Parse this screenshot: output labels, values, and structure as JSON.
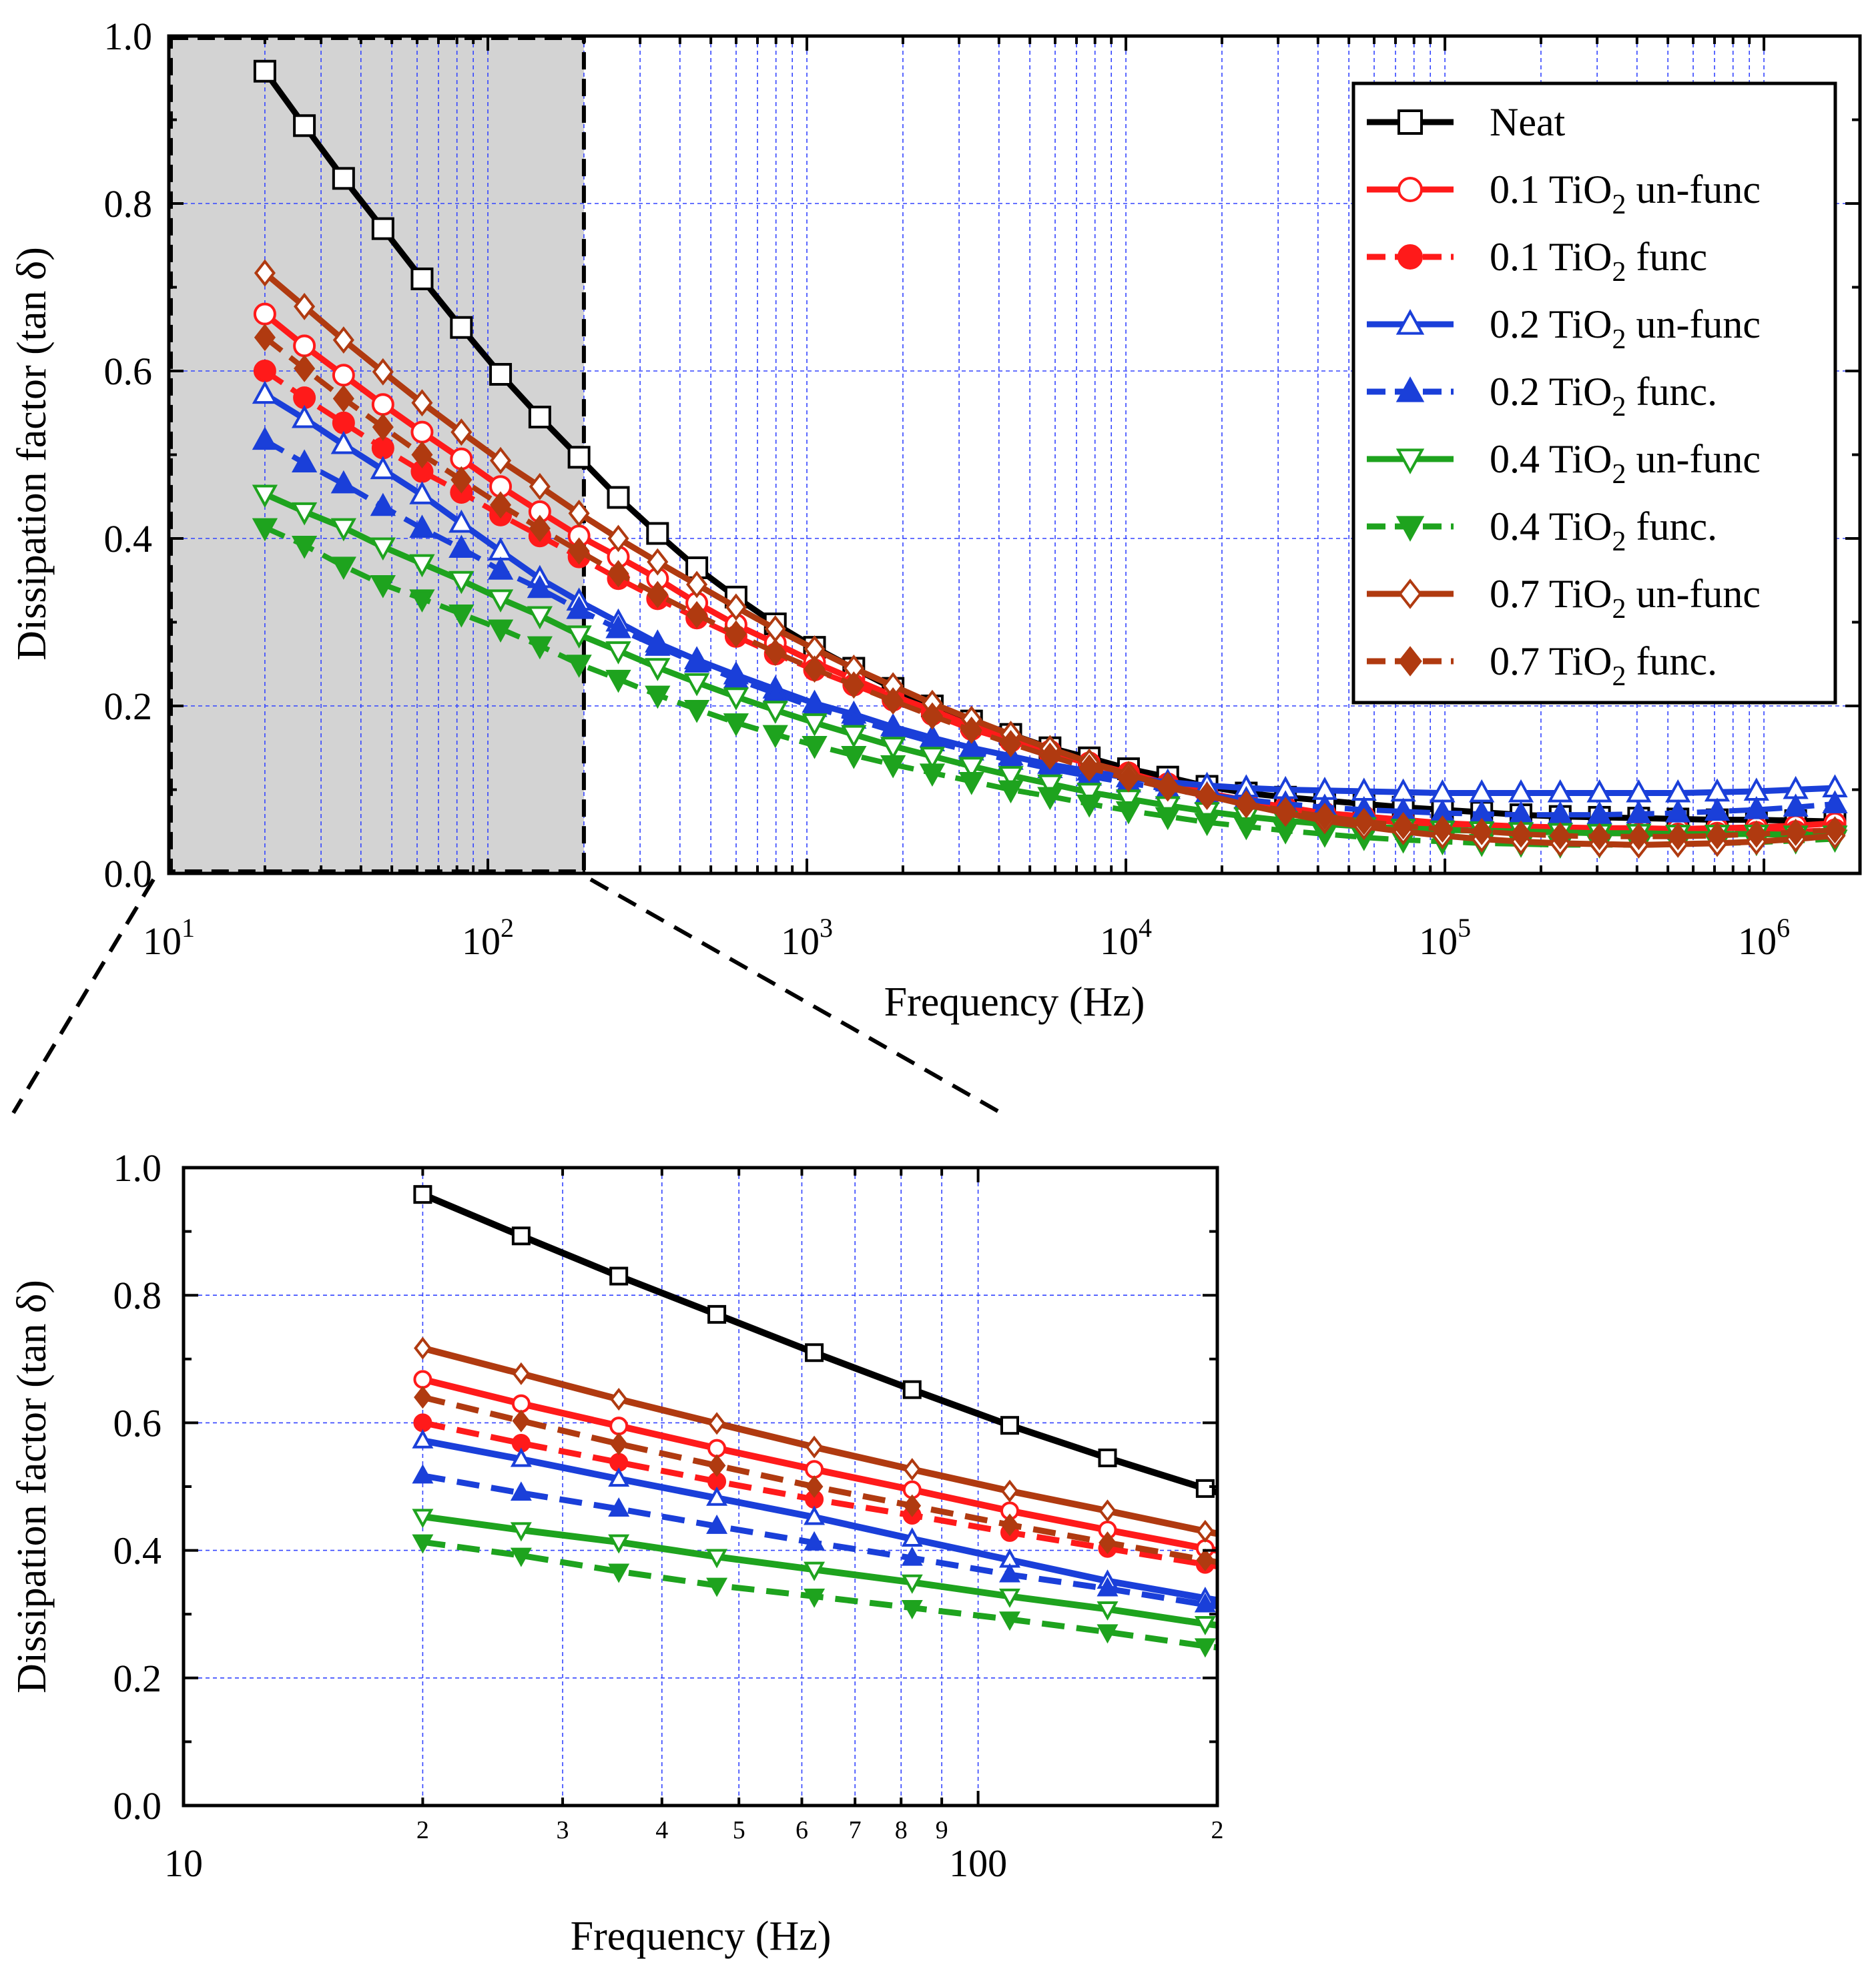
{
  "colors": {
    "neat": "#000000",
    "red": "#ff1a1a",
    "blue": "#1a3fd9",
    "green": "#1ea31e",
    "brown": "#b03a10",
    "grid": "#3344ff",
    "shade": "#d3d3d3"
  },
  "chart_data": [
    {
      "id": "main",
      "type": "line",
      "xscale": "log",
      "xlim": [
        10,
        2000000
      ],
      "ylim": [
        0,
        1.0
      ],
      "xlabel": "Frequency (Hz)",
      "ylabel": "Dissipation factor (tan δ)",
      "yticks": [
        "0.0",
        "0.2",
        "0.4",
        "0.6",
        "0.8",
        "1.0"
      ],
      "xticks": [
        {
          "base": "10",
          "exp": "1"
        },
        {
          "base": "10",
          "exp": "2"
        },
        {
          "base": "10",
          "exp": "3"
        },
        {
          "base": "10",
          "exp": "4"
        },
        {
          "base": "10",
          "exp": "5"
        },
        {
          "base": "10",
          "exp": "6"
        }
      ],
      "zoom_region": {
        "x": [
          10,
          200
        ],
        "y": [
          0,
          1.0
        ]
      },
      "legend": {
        "position": "top-right",
        "entries": [
          {
            "pre": "Neat",
            "sub": "",
            "post": ""
          },
          {
            "pre": "0.1 TiO",
            "sub": "2",
            "post": " un-func"
          },
          {
            "pre": "0.1 TiO",
            "sub": "2",
            "post": " func"
          },
          {
            "pre": "0.2 TiO",
            "sub": "2",
            "post": " un-func"
          },
          {
            "pre": "0.2 TiO",
            "sub": "2",
            "post": " func."
          },
          {
            "pre": "0.4 TiO",
            "sub": "2",
            "post": " un-func"
          },
          {
            "pre": "0.4 TiO",
            "sub": "2",
            "post": " func."
          },
          {
            "pre": "0.7 TiO",
            "sub": "2",
            "post": " un-func"
          },
          {
            "pre": "0.7 TiO",
            "sub": "2",
            "post": " func."
          }
        ]
      },
      "x": [
        20,
        26.6,
        35.3,
        46.9,
        62.2,
        82.6,
        109.6,
        145.5,
        193.1,
        256.4,
        340.4,
        451.8,
        599.7,
        796.2,
        1056.8,
        1402.9,
        1862.3,
        2472.1,
        3281.6,
        4356.1,
        5782.5,
        7676.1,
        10189.6,
        13526.1,
        17955.2,
        23834.6,
        31639.3,
        41999.7,
        55752.6,
        74008.9,
        98243.2,
        130413.3,
        173117.5,
        229805.4,
        305056.7,
        404949.7,
        537551.8,
        713575.2,
        947237.6,
        1257414.6,
        1669160.8
      ],
      "series": [
        {
          "name": "Neat",
          "color": "neat",
          "dash": false,
          "marker": "square",
          "filled": false,
          "values": [
            0.958,
            0.893,
            0.83,
            0.77,
            0.71,
            0.652,
            0.596,
            0.545,
            0.497,
            0.449,
            0.406,
            0.365,
            0.33,
            0.298,
            0.27,
            0.245,
            0.221,
            0.2,
            0.182,
            0.166,
            0.15,
            0.138,
            0.125,
            0.115,
            0.104,
            0.096,
            0.091,
            0.087,
            0.083,
            0.079,
            0.076,
            0.073,
            0.07,
            0.068,
            0.067,
            0.066,
            0.065,
            0.064,
            0.064,
            0.063,
            0.062
          ]
        },
        {
          "name": "0.1 TiO2 un-func",
          "color": "red",
          "dash": false,
          "marker": "circle",
          "filled": false,
          "values": [
            0.668,
            0.63,
            0.595,
            0.56,
            0.527,
            0.495,
            0.462,
            0.432,
            0.403,
            0.378,
            0.352,
            0.323,
            0.297,
            0.275,
            0.252,
            0.232,
            0.212,
            0.195,
            0.176,
            0.16,
            0.146,
            0.132,
            0.12,
            0.107,
            0.096,
            0.087,
            0.079,
            0.072,
            0.068,
            0.064,
            0.06,
            0.058,
            0.056,
            0.055,
            0.054,
            0.054,
            0.053,
            0.054,
            0.055,
            0.057,
            0.06
          ]
        },
        {
          "name": "0.1 TiO2 func",
          "color": "red",
          "dash": true,
          "marker": "circle",
          "filled": true,
          "values": [
            0.6,
            0.568,
            0.538,
            0.508,
            0.48,
            0.455,
            0.428,
            0.403,
            0.378,
            0.352,
            0.328,
            0.305,
            0.283,
            0.262,
            0.243,
            0.225,
            0.207,
            0.19,
            0.172,
            0.158,
            0.143,
            0.131,
            0.118,
            0.106,
            0.095,
            0.085,
            0.077,
            0.07,
            0.065,
            0.06,
            0.056,
            0.052,
            0.05,
            0.049,
            0.048,
            0.047,
            0.047,
            0.048,
            0.049,
            0.05,
            0.052
          ]
        },
        {
          "name": "0.2 TiO2 un-func",
          "color": "blue",
          "dash": false,
          "marker": "triangle-up",
          "filled": false,
          "values": [
            0.572,
            0.543,
            0.512,
            0.482,
            0.452,
            0.418,
            0.385,
            0.352,
            0.325,
            0.3,
            0.275,
            0.255,
            0.237,
            0.22,
            0.203,
            0.19,
            0.175,
            0.162,
            0.15,
            0.14,
            0.13,
            0.122,
            0.114,
            0.109,
            0.105,
            0.102,
            0.1,
            0.099,
            0.098,
            0.097,
            0.096,
            0.096,
            0.096,
            0.096,
            0.096,
            0.096,
            0.096,
            0.097,
            0.098,
            0.1,
            0.102
          ]
        },
        {
          "name": "0.2 TiO2 func.",
          "color": "blue",
          "dash": true,
          "marker": "triangle-up",
          "filled": true,
          "values": [
            0.517,
            0.49,
            0.465,
            0.438,
            0.412,
            0.388,
            0.362,
            0.34,
            0.315,
            0.292,
            0.271,
            0.251,
            0.232,
            0.215,
            0.198,
            0.184,
            0.17,
            0.157,
            0.146,
            0.135,
            0.125,
            0.116,
            0.108,
            0.1,
            0.094,
            0.088,
            0.083,
            0.079,
            0.076,
            0.074,
            0.072,
            0.071,
            0.07,
            0.07,
            0.07,
            0.071,
            0.072,
            0.074,
            0.076,
            0.079,
            0.083
          ]
        },
        {
          "name": "0.4 TiO2 un-func",
          "color": "green",
          "dash": false,
          "marker": "triangle-down",
          "filled": false,
          "values": [
            0.453,
            0.432,
            0.413,
            0.39,
            0.37,
            0.35,
            0.328,
            0.308,
            0.285,
            0.266,
            0.246,
            0.228,
            0.211,
            0.195,
            0.18,
            0.166,
            0.152,
            0.14,
            0.128,
            0.117,
            0.107,
            0.097,
            0.089,
            0.081,
            0.074,
            0.068,
            0.063,
            0.059,
            0.056,
            0.054,
            0.052,
            0.051,
            0.05,
            0.049,
            0.048,
            0.048,
            0.047,
            0.047,
            0.047,
            0.046,
            0.046
          ]
        },
        {
          "name": "0.4 TiO2 func.",
          "color": "green",
          "dash": true,
          "marker": "triangle-down",
          "filled": true,
          "values": [
            0.413,
            0.392,
            0.367,
            0.345,
            0.328,
            0.31,
            0.292,
            0.272,
            0.25,
            0.232,
            0.213,
            0.196,
            0.18,
            0.166,
            0.153,
            0.141,
            0.13,
            0.12,
            0.11,
            0.1,
            0.092,
            0.083,
            0.075,
            0.068,
            0.061,
            0.056,
            0.051,
            0.047,
            0.043,
            0.04,
            0.038,
            0.036,
            0.035,
            0.034,
            0.034,
            0.034,
            0.035,
            0.036,
            0.037,
            0.039,
            0.041
          ]
        },
        {
          "name": "0.7 TiO2 un-func",
          "color": "brown",
          "dash": false,
          "marker": "diamond",
          "filled": false,
          "values": [
            0.717,
            0.677,
            0.637,
            0.599,
            0.562,
            0.527,
            0.493,
            0.462,
            0.43,
            0.4,
            0.372,
            0.345,
            0.318,
            0.292,
            0.268,
            0.245,
            0.224,
            0.203,
            0.184,
            0.166,
            0.149,
            0.133,
            0.118,
            0.105,
            0.093,
            0.082,
            0.072,
            0.063,
            0.056,
            0.05,
            0.045,
            0.041,
            0.038,
            0.036,
            0.035,
            0.034,
            0.035,
            0.036,
            0.038,
            0.041,
            0.045
          ]
        },
        {
          "name": "0.7 TiO2 func.",
          "color": "brown",
          "dash": true,
          "marker": "diamond",
          "filled": true,
          "values": [
            0.64,
            0.603,
            0.567,
            0.533,
            0.5,
            0.47,
            0.44,
            0.412,
            0.385,
            0.358,
            0.333,
            0.309,
            0.286,
            0.264,
            0.244,
            0.225,
            0.206,
            0.188,
            0.171,
            0.155,
            0.14,
            0.126,
            0.113,
            0.102,
            0.092,
            0.083,
            0.075,
            0.068,
            0.062,
            0.057,
            0.053,
            0.05,
            0.047,
            0.045,
            0.044,
            0.044,
            0.044,
            0.045,
            0.047,
            0.049,
            0.052
          ]
        }
      ]
    },
    {
      "id": "inset",
      "type": "line",
      "xscale": "log",
      "xlim": [
        10,
        200
      ],
      "ylim": [
        0,
        1.0
      ],
      "xlabel": "Frequency (Hz)",
      "ylabel": "Dissipation factor (tan δ)",
      "yticks": [
        "0.0",
        "0.2",
        "0.4",
        "0.6",
        "0.8",
        "1.0"
      ],
      "xticks_major": [
        {
          "value": 10,
          "label": "10"
        },
        {
          "value": 100,
          "label": "100"
        }
      ],
      "xticks_minor": [
        {
          "value": 20,
          "label": "2"
        },
        {
          "value": 30,
          "label": "3"
        },
        {
          "value": 40,
          "label": "4"
        },
        {
          "value": 50,
          "label": "5"
        },
        {
          "value": 60,
          "label": "6"
        },
        {
          "value": 70,
          "label": "7"
        },
        {
          "value": 80,
          "label": "8"
        },
        {
          "value": 90,
          "label": "9"
        },
        {
          "value": 200,
          "label": "2"
        }
      ],
      "x": [
        20,
        26.6,
        35.3,
        46.9,
        62.2,
        82.6,
        109.6,
        145.5,
        193.1,
        200
      ],
      "series_ref": "main"
    }
  ]
}
